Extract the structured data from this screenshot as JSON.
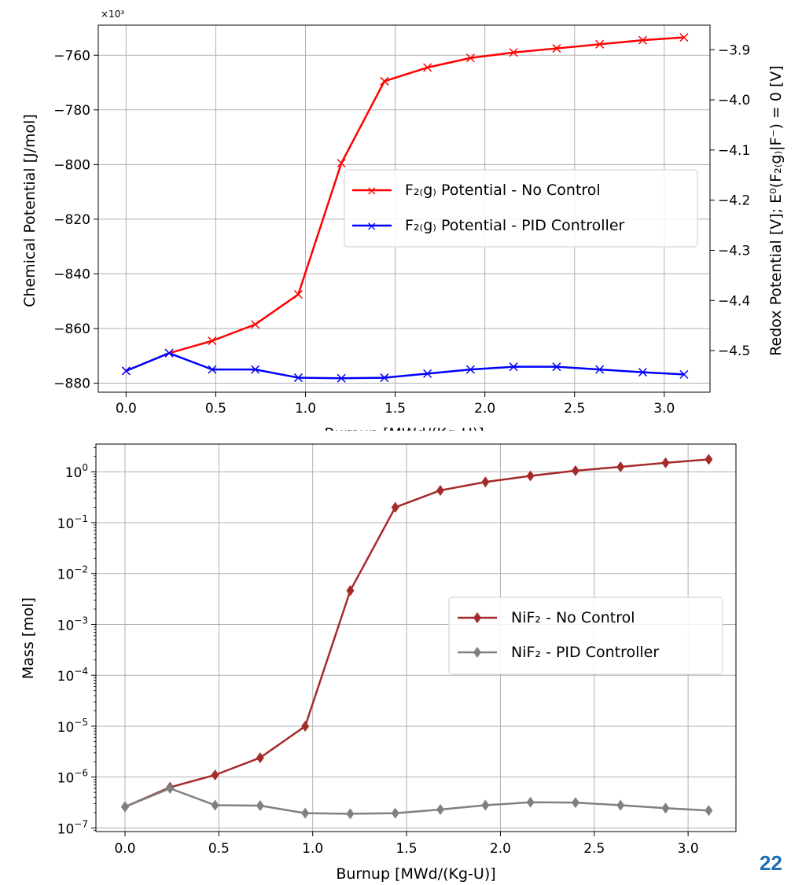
{
  "page_number": "22",
  "chart_data": [
    {
      "type": "line",
      "xlabel": "Burnup [MWd/(Kg-U)]",
      "ylabel": "Chemical Potential [J/mol]",
      "ylabel_right": "Redox Potential [V]; E⁰(F₂₍g₎|F⁻) = 0 [V]",
      "y_scale_note": "×10³",
      "xlim": [
        -0.155,
        3.255
      ],
      "ylim": [
        -883.3,
        -749.0
      ],
      "ylim_right": [
        -4.583,
        -3.851
      ],
      "xticks": [
        "0.0",
        "0.5",
        "1.0",
        "1.5",
        "2.0",
        "2.5",
        "3.0"
      ],
      "yticks": [
        "-760",
        "-780",
        "-800",
        "-820",
        "-840",
        "-860",
        "-880"
      ],
      "yticks_right": [
        "-3.9",
        "-4.0",
        "-4.1",
        "-4.2",
        "-4.3",
        "-4.4",
        "-4.5"
      ],
      "grid": true,
      "legend_position": "center-right",
      "x": [
        0.0,
        0.24,
        0.48,
        0.72,
        0.96,
        1.2,
        1.44,
        1.68,
        1.92,
        2.16,
        2.4,
        2.64,
        2.88,
        3.11
      ],
      "series": [
        {
          "name": "F₂₍g₎ Potential - No Control",
          "color": "#ff0000",
          "marker": "x",
          "values": [
            -875.5,
            -869.0,
            -864.5,
            -858.5,
            -847.5,
            -799.5,
            -769.5,
            -764.5,
            -761.0,
            -759.0,
            -757.5,
            -756.0,
            -754.5,
            -753.5
          ]
        },
        {
          "name": "F₂₍g₎ Potential - PID Controller",
          "color": "#0000ff",
          "marker": "x",
          "values": [
            -875.5,
            -869.0,
            -875.0,
            -875.0,
            -878.0,
            -878.2,
            -878.0,
            -876.5,
            -875.0,
            -874.0,
            -874.0,
            -875.0,
            -876.0,
            -876.8
          ]
        }
      ]
    },
    {
      "type": "line",
      "xlabel": "Burnup [MWd/(Kg-U)]",
      "ylabel": "Mass [mol]",
      "y_scale": "log",
      "xlim": [
        -0.155,
        3.255
      ],
      "ylim": [
        8.5e-08,
        3.5
      ],
      "xticks": [
        "0.0",
        "0.5",
        "1.0",
        "1.5",
        "2.0",
        "2.5",
        "3.0"
      ],
      "ytick_mantissa": "10",
      "ytick_exponents": [
        "0",
        "-1",
        "-2",
        "-3",
        "-4",
        "-5",
        "-6",
        "-7"
      ],
      "grid": true,
      "legend_position": "center-right",
      "x": [
        0.0,
        0.24,
        0.48,
        0.72,
        0.96,
        1.2,
        1.44,
        1.68,
        1.92,
        2.16,
        2.4,
        2.64,
        2.88,
        3.11
      ],
      "series": [
        {
          "name": "NiF₂ - No Control",
          "color": "#a52a2a",
          "marker": "diamond",
          "values": [
            2.6e-07,
            6.3e-07,
            1.1e-06,
            2.4e-06,
            1e-05,
            0.0046,
            0.2,
            0.43,
            0.63,
            0.83,
            1.05,
            1.25,
            1.5,
            1.75
          ]
        },
        {
          "name": "NiF₂ - PID Controller",
          "color": "#808080",
          "marker": "diamond",
          "values": [
            2.6e-07,
            6e-07,
            2.8e-07,
            2.75e-07,
            1.95e-07,
            1.9e-07,
            1.95e-07,
            2.3e-07,
            2.8e-07,
            3.2e-07,
            3.15e-07,
            2.8e-07,
            2.45e-07,
            2.2e-07
          ]
        }
      ]
    }
  ]
}
